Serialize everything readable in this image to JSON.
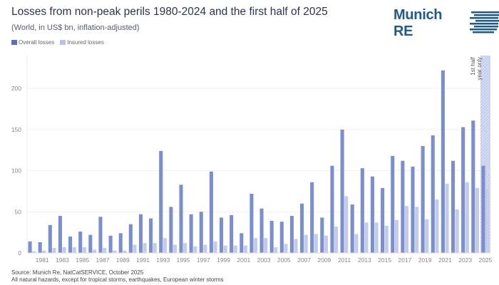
{
  "logo": {
    "text": "Munich RE",
    "color": "#1f5a8a"
  },
  "chart_data": {
    "type": "bar",
    "title": "Losses from non-peak perils 1980-2024 and the first half of 2025",
    "subtitle": "(World, in US$ bn, inflation-adjusted)",
    "categories": [
      1980,
      1981,
      1982,
      1983,
      1984,
      1985,
      1986,
      1987,
      1988,
      1989,
      1990,
      1991,
      1992,
      1993,
      1994,
      1995,
      1996,
      1997,
      1998,
      1999,
      2000,
      2001,
      2002,
      2003,
      2004,
      2005,
      2006,
      2007,
      2008,
      2009,
      2010,
      2011,
      2012,
      2013,
      2014,
      2015,
      2016,
      2017,
      2018,
      2019,
      2020,
      2021,
      2022,
      2023,
      2024,
      2025
    ],
    "x_tick_labels": [
      "1981",
      "1983",
      "1985",
      "1987",
      "1989",
      "1991",
      "1993",
      "1995",
      "1997",
      "1999",
      "2001",
      "2003",
      "2005",
      "2007",
      "2009",
      "2011",
      "2013",
      "2015",
      "2017",
      "2019",
      "2021",
      "2023",
      "2025"
    ],
    "series": [
      {
        "name": "Overall losses",
        "color": "#7b8fcf",
        "values": [
          14,
          13,
          34,
          45,
          20,
          26,
          22,
          44,
          21,
          24,
          35,
          47,
          42,
          124,
          56,
          83,
          47,
          50,
          99,
          43,
          46,
          24,
          72,
          54,
          39,
          38,
          45,
          60,
          86,
          43,
          106,
          150,
          59,
          103,
          93,
          79,
          118,
          112,
          105,
          130,
          143,
          222,
          112,
          153,
          161,
          106
        ]
      },
      {
        "name": "Insured losses",
        "color": "#c3cbea",
        "values": [
          2,
          3,
          6,
          7,
          7,
          7,
          4,
          6,
          3,
          3,
          10,
          12,
          12,
          18,
          10,
          12,
          8,
          10,
          14,
          9,
          9,
          9,
          18,
          18,
          7,
          11,
          17,
          22,
          23,
          21,
          32,
          69,
          23,
          37,
          37,
          33,
          40,
          57,
          56,
          41,
          65,
          84,
          53,
          86,
          79,
          77
        ]
      }
    ],
    "ylim": [
      0,
      240
    ],
    "yticks": [
      0,
      50,
      100,
      150,
      200
    ],
    "grid": true,
    "legend_position": "top-left",
    "annotation": {
      "category": 2025,
      "lines": [
        "1st half",
        "year only"
      ]
    }
  },
  "source": {
    "line1": "Source: Munich Re, NatCatSERVICE, October 2025",
    "line2": "All natural hazards, except for tropical storms, earthquakes, European winter storms"
  }
}
